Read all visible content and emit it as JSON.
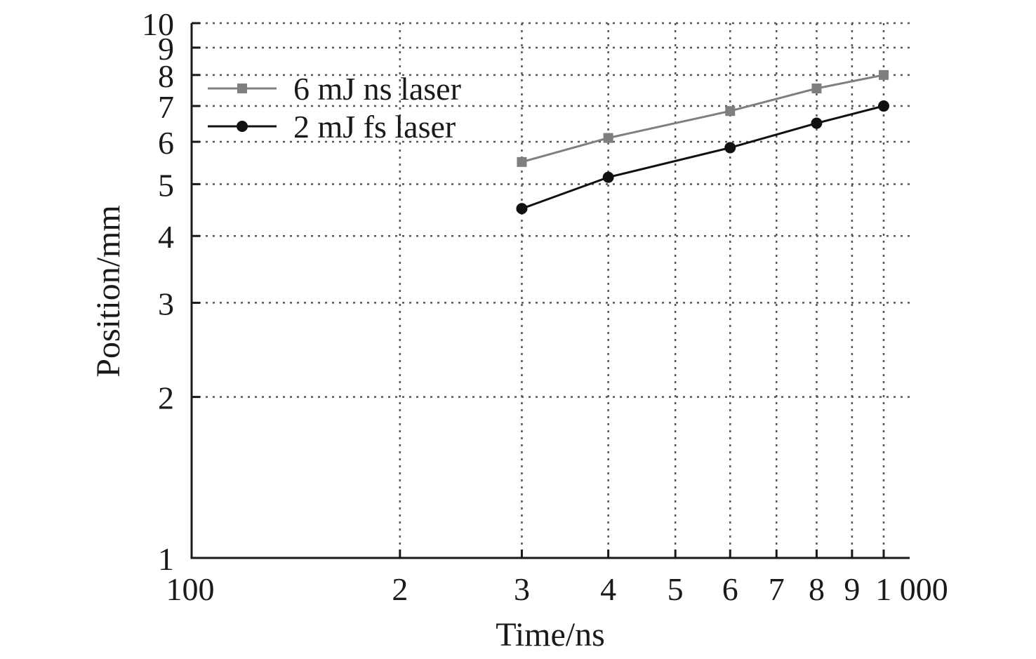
{
  "chart_data": {
    "type": "line",
    "xlabel": "Time/ns",
    "ylabel": "Position/mm",
    "xscale": "log",
    "yscale": "log",
    "xlim": [
      100,
      1000
    ],
    "ylim": [
      1,
      10
    ],
    "grid": true,
    "legend_position": "top-left",
    "x_ticks": [
      {
        "value": 100,
        "label": "100"
      },
      {
        "value": 200,
        "label": "2"
      },
      {
        "value": 300,
        "label": "3"
      },
      {
        "value": 400,
        "label": "4"
      },
      {
        "value": 500,
        "label": "5"
      },
      {
        "value": 600,
        "label": "6"
      },
      {
        "value": 700,
        "label": "7"
      },
      {
        "value": 800,
        "label": "8"
      },
      {
        "value": 900,
        "label": "9"
      },
      {
        "value": 1000,
        "label": "1 000"
      }
    ],
    "y_ticks": [
      {
        "value": 1,
        "label": "1"
      },
      {
        "value": 2,
        "label": "2"
      },
      {
        "value": 3,
        "label": "3"
      },
      {
        "value": 4,
        "label": "4"
      },
      {
        "value": 5,
        "label": "5"
      },
      {
        "value": 6,
        "label": "6"
      },
      {
        "value": 7,
        "label": "7"
      },
      {
        "value": 8,
        "label": "8"
      },
      {
        "value": 9,
        "label": "9"
      },
      {
        "value": 10,
        "label": "10"
      }
    ],
    "series": [
      {
        "name": "6 mJ ns laser",
        "color": "#7f7f7f",
        "marker": "square",
        "x": [
          300,
          400,
          600,
          800,
          1000
        ],
        "y": [
          5.5,
          6.1,
          6.85,
          7.55,
          8.0
        ]
      },
      {
        "name": "2 mJ fs laser",
        "color": "#111111",
        "marker": "circle",
        "x": [
          300,
          400,
          600,
          800,
          1000
        ],
        "y": [
          4.5,
          5.15,
          5.85,
          6.5,
          7.0
        ]
      }
    ]
  }
}
